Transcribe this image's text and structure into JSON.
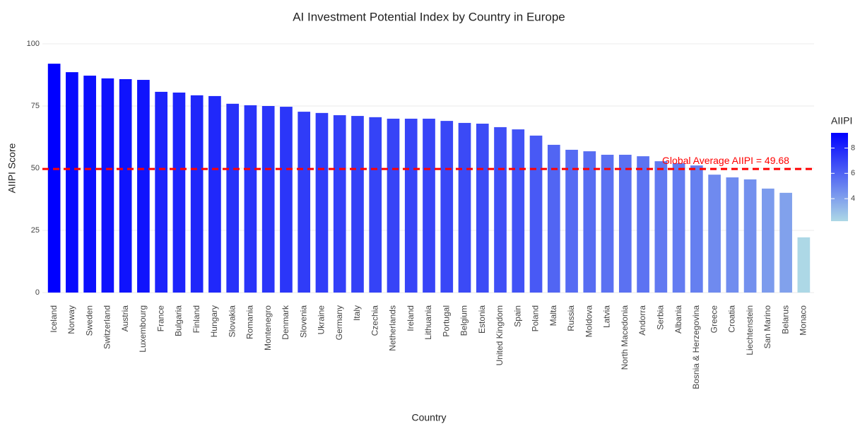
{
  "chart_data": {
    "type": "bar",
    "title": "AI Investment Potential Index by Country in Europe",
    "x_label": "Country",
    "y_label": "AIIPI Score",
    "categories": [
      "Iceland",
      "Norway",
      "Sweden",
      "Switzerland",
      "Austria",
      "Luxembourg",
      "France",
      "Bulgaria",
      "Finland",
      "Hungary",
      "Slovakia",
      "Romania",
      "Montenegro",
      "Denmark",
      "Slovenia",
      "Ukraine",
      "Germany",
      "Italy",
      "Czechia",
      "Netherlands",
      "Ireland",
      "Lithuania",
      "Portugal",
      "Belgium",
      "Estonia",
      "United Kingdom",
      "Spain",
      "Poland",
      "Malta",
      "Russia",
      "Moldova",
      "Latvia",
      "North Macedonia",
      "Andorra",
      "Serbia",
      "Albania",
      "Bosnia & Herzegovina",
      "Greece",
      "Croatia",
      "Liechtenstein",
      "San Marino",
      "Belarus",
      "Monaco"
    ],
    "values": [
      92.0,
      88.6,
      87.2,
      86.1,
      85.8,
      85.5,
      80.7,
      80.4,
      79.3,
      79.0,
      75.9,
      75.3,
      75.0,
      74.7,
      72.7,
      72.2,
      71.3,
      71.0,
      70.5,
      69.9,
      69.9,
      69.9,
      69.0,
      68.2,
      67.9,
      66.5,
      65.6,
      63.1,
      59.4,
      57.4,
      56.8,
      55.4,
      55.4,
      54.8,
      52.8,
      52.0,
      51.1,
      47.4,
      46.3,
      45.5,
      41.8,
      40.1,
      22.2
    ],
    "ylim": [
      0,
      100
    ],
    "yticks": [
      0,
      25,
      50,
      75,
      100
    ],
    "grid": true,
    "color_low": "#add8e6",
    "color_high": "#0000ff",
    "reference_line": {
      "value": 49.68,
      "color": "#ff0000",
      "label": "Global Average AIIPI = 49.68"
    },
    "colorbar": {
      "title": "AIIPI",
      "lim": [
        2.22,
        9.2
      ],
      "ticks": [
        4,
        6,
        8
      ]
    }
  }
}
